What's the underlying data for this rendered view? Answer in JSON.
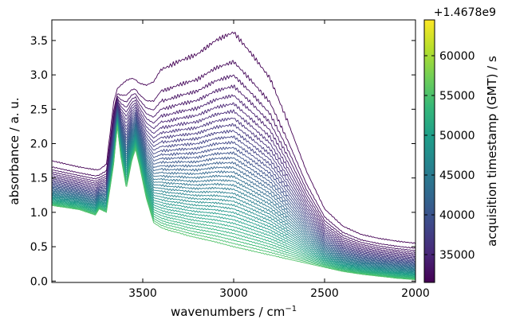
{
  "chart_data": {
    "type": "line",
    "xlabel": "wavenumbers / cm",
    "xlabel_superscript": "−1",
    "ylabel": "absorbance / a. u.",
    "xlim": [
      4000,
      2000
    ],
    "ylim": [
      -0.02,
      3.8
    ],
    "x_ticks": [
      {
        "value": 3500,
        "label": "3500"
      },
      {
        "value": 3000,
        "label": "3000"
      },
      {
        "value": 2500,
        "label": "2500"
      },
      {
        "value": 2000,
        "label": "2000"
      }
    ],
    "y_ticks": [
      {
        "value": 0.0,
        "label": "0.0"
      },
      {
        "value": 0.5,
        "label": "0.5"
      },
      {
        "value": 1.0,
        "label": "1.0"
      },
      {
        "value": 1.5,
        "label": "1.5"
      },
      {
        "value": 2.0,
        "label": "2.0"
      },
      {
        "value": 2.5,
        "label": "2.5"
      },
      {
        "value": 3.0,
        "label": "3.0"
      },
      {
        "value": 3.5,
        "label": "3.5"
      }
    ],
    "colormap": "viridis",
    "colormap_stops": [
      "#440154",
      "#482878",
      "#3e4989",
      "#31688e",
      "#26828e",
      "#1f9e89",
      "#35b779",
      "#6ece58",
      "#b5de2b",
      "#fde725"
    ],
    "series_count": 38,
    "colorbar": {
      "label": "acquisition timestamp (GMT) / s",
      "offset_label": "+1.4678e9",
      "range": [
        31500,
        64500
      ],
      "ticks": [
        {
          "value": 35000,
          "label": "35000"
        },
        {
          "value": 40000,
          "label": "40000"
        },
        {
          "value": 45000,
          "label": "45000"
        },
        {
          "value": 50000,
          "label": "50000"
        },
        {
          "value": 55000,
          "label": "55000"
        },
        {
          "value": 60000,
          "label": "60000"
        }
      ]
    },
    "reference_spectra": {
      "x": [
        4000,
        3850,
        3760,
        3740,
        3700,
        3660,
        3640,
        3620,
        3590,
        3560,
        3540,
        3520,
        3480,
        3440,
        3400,
        3360,
        3300,
        3250,
        3200,
        3100,
        3000,
        2900,
        2800,
        2700,
        2600,
        2500,
        2400,
        2300,
        2200,
        2100,
        2000
      ],
      "first": [
        1.75,
        1.66,
        1.62,
        1.62,
        1.7,
        2.6,
        2.8,
        2.85,
        2.92,
        2.95,
        2.93,
        2.88,
        2.85,
        2.9,
        3.08,
        3.12,
        3.2,
        3.25,
        3.3,
        3.5,
        3.62,
        3.3,
        2.95,
        2.3,
        1.6,
        1.05,
        0.8,
        0.68,
        0.62,
        0.58,
        0.55
      ],
      "last": [
        1.1,
        1.04,
        0.96,
        1.05,
        1.0,
        1.7,
        2.25,
        1.8,
        1.35,
        1.75,
        1.92,
        1.7,
        1.2,
        0.85,
        0.78,
        0.74,
        0.7,
        0.66,
        0.63,
        0.57,
        0.5,
        0.44,
        0.38,
        0.32,
        0.26,
        0.2,
        0.14,
        0.1,
        0.07,
        0.04,
        0.02
      ]
    }
  }
}
